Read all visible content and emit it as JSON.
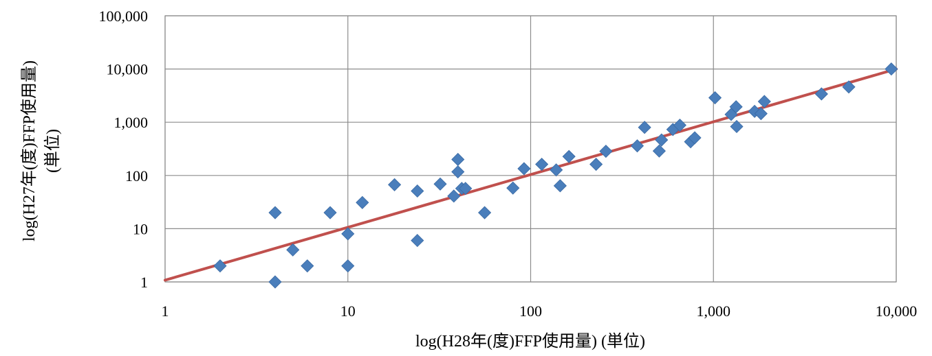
{
  "chart_data": {
    "type": "scatter",
    "xlabel": "log(H28年(度)FFP使用量) (単位)",
    "ylabel_lines": [
      "log(H27年(度)FFP使用量)",
      "(単位)"
    ],
    "x_scale": "log",
    "y_scale": "log",
    "xlim": [
      1,
      10000
    ],
    "ylim": [
      1,
      100000
    ],
    "x_ticks": [
      {
        "value": 1,
        "label": "1"
      },
      {
        "value": 10,
        "label": "10"
      },
      {
        "value": 100,
        "label": "100"
      },
      {
        "value": 1000,
        "label": "1,000"
      },
      {
        "value": 10000,
        "label": "10,000"
      }
    ],
    "y_ticks": [
      {
        "value": 1,
        "label": "1"
      },
      {
        "value": 10,
        "label": "10"
      },
      {
        "value": 100,
        "label": "100"
      },
      {
        "value": 1000,
        "label": "1,000"
      },
      {
        "value": 10000,
        "label": "10,000"
      },
      {
        "value": 100000,
        "label": "100,000"
      }
    ],
    "grid": true,
    "marker_color": "#4a7ebb",
    "points": [
      [
        2,
        2
      ],
      [
        4,
        20
      ],
      [
        4,
        1
      ],
      [
        5,
        4
      ],
      [
        6,
        2
      ],
      [
        8,
        20
      ],
      [
        10,
        8
      ],
      [
        10,
        2
      ],
      [
        12,
        31
      ],
      [
        18,
        67
      ],
      [
        24,
        51
      ],
      [
        24,
        6
      ],
      [
        32,
        69
      ],
      [
        38,
        41
      ],
      [
        40,
        200
      ],
      [
        40,
        117
      ],
      [
        42,
        57
      ],
      [
        44,
        57
      ],
      [
        56,
        20
      ],
      [
        80,
        58
      ],
      [
        92,
        134
      ],
      [
        115,
        162
      ],
      [
        138,
        127
      ],
      [
        145,
        64
      ],
      [
        162,
        227
      ],
      [
        228,
        162
      ],
      [
        258,
        285
      ],
      [
        383,
        360
      ],
      [
        420,
        800
      ],
      [
        505,
        288
      ],
      [
        520,
        465
      ],
      [
        600,
        730
      ],
      [
        655,
        880
      ],
      [
        750,
        430
      ],
      [
        790,
        510
      ],
      [
        1020,
        2880
      ],
      [
        1250,
        1400
      ],
      [
        1330,
        1950
      ],
      [
        1340,
        830
      ],
      [
        1680,
        1600
      ],
      [
        1820,
        1450
      ],
      [
        1900,
        2450
      ],
      [
        3900,
        3400
      ],
      [
        5500,
        4600
      ],
      [
        9400,
        10000
      ]
    ],
    "trendline": {
      "x": [
        1,
        10000
      ],
      "y": [
        1.08,
        10000
      ],
      "color": "#c0504d"
    }
  }
}
